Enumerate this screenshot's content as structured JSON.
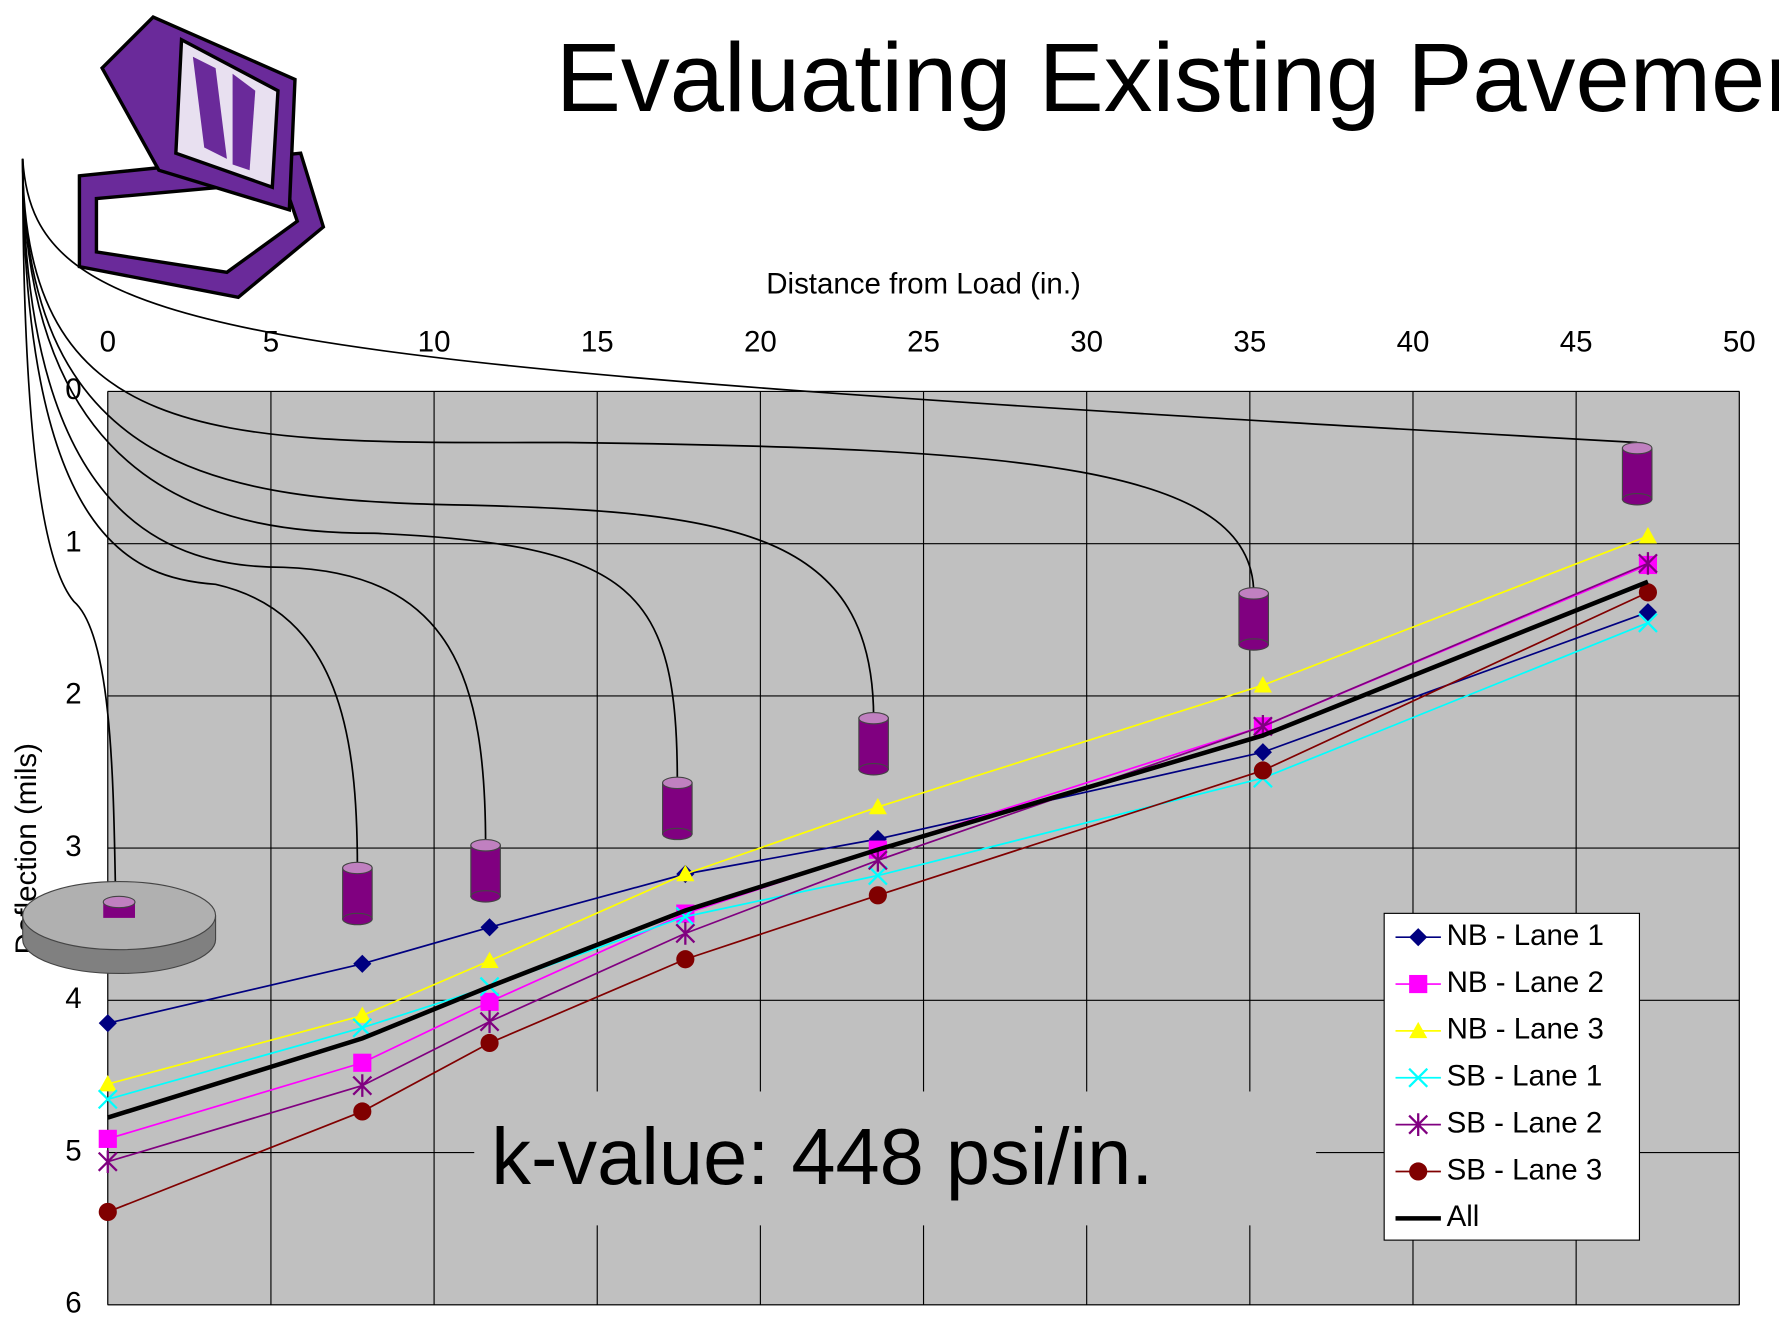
{
  "chart_data": {
    "type": "line",
    "title": "Evaluating Existing Pavement",
    "x_label": "Distance from Load (in.)",
    "y_label": "Deflection (mils)",
    "annotation": "k-value: 448 psi/in.",
    "xlim": [
      0,
      50
    ],
    "xticks": [
      0,
      5,
      10,
      15,
      20,
      25,
      30,
      35,
      40,
      45,
      50
    ],
    "ylim": [
      0,
      6
    ],
    "yticks": [
      0,
      1,
      2,
      3,
      4,
      5,
      6
    ],
    "y_inverted": true,
    "x_axis_position": "top",
    "grid": true,
    "legend": "right",
    "x": [
      0,
      7.8,
      11.7,
      17.7,
      23.6,
      35.4,
      47.2
    ],
    "series": [
      {
        "name": "NB - Lane 1",
        "color": "#000080",
        "marker": "diamond",
        "values": [
          4.15,
          3.76,
          3.52,
          3.17,
          2.94,
          2.37,
          1.45
        ]
      },
      {
        "name": "NB - Lane 2",
        "color": "#ff00ff",
        "marker": "square",
        "values": [
          4.91,
          4.41,
          4.01,
          3.43,
          3.01,
          2.2,
          1.14
        ]
      },
      {
        "name": "NB - Lane 3",
        "color": "#ffff00",
        "marker": "triangle",
        "values": [
          4.55,
          4.1,
          3.74,
          3.17,
          2.73,
          1.93,
          0.95
        ]
      },
      {
        "name": "SB - Lane 1",
        "color": "#00ffff",
        "marker": "x",
        "values": [
          4.65,
          4.18,
          3.91,
          3.45,
          3.18,
          2.54,
          1.52
        ]
      },
      {
        "name": "SB - Lane 2",
        "color": "#800080",
        "marker": "star",
        "values": [
          5.06,
          4.56,
          4.14,
          3.56,
          3.08,
          2.2,
          1.13
        ]
      },
      {
        "name": "SB - Lane 3",
        "color": "#800000",
        "marker": "circle",
        "values": [
          5.39,
          4.73,
          4.28,
          3.73,
          3.31,
          2.49,
          1.32
        ]
      },
      {
        "name": "All",
        "color": "#000000",
        "marker": "none",
        "line_width": 4,
        "values": [
          4.77,
          4.25,
          3.91,
          3.41,
          3.01,
          2.26,
          1.25
        ]
      }
    ]
  }
}
